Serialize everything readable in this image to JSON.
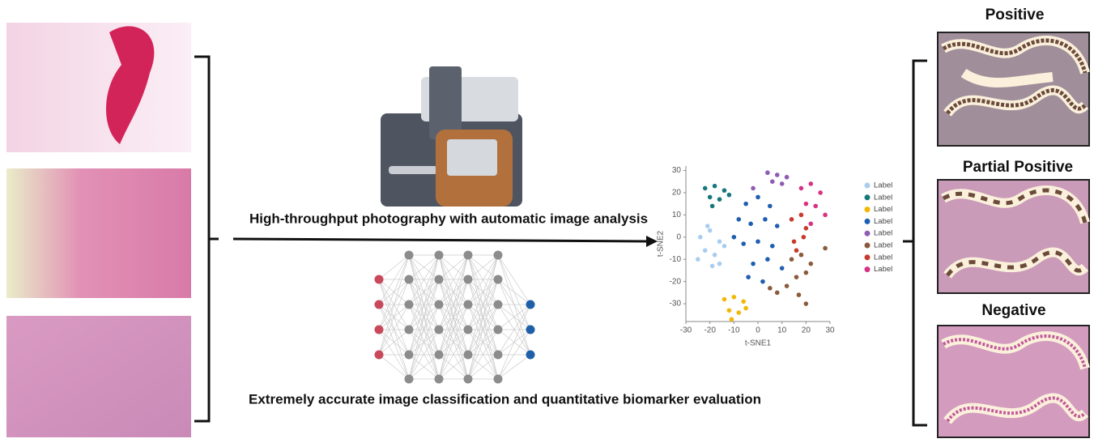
{
  "panels": {
    "positive": "Positive",
    "partial": "Partial Positive",
    "negative": "Negative"
  },
  "captions": {
    "top": "High-throughput  photography with automatic image analysis",
    "bottom": "Extremely  accurate image classification and quantitative biomarker evaluation"
  },
  "chart_data": {
    "type": "scatter",
    "xlabel": "t-SNE1",
    "ylabel": "t-SNE2",
    "xlim": [
      -30,
      30
    ],
    "ylim": [
      -38,
      32
    ],
    "xticks": [
      -30,
      -20,
      -10,
      0,
      10,
      20,
      30
    ],
    "yticks": [
      -30,
      -20,
      -10,
      0,
      10,
      20,
      30
    ],
    "series": [
      {
        "name": "Label",
        "color": "#a9cdee",
        "x": [
          -24,
          -20,
          -16,
          -22,
          -18,
          -14,
          -25,
          -19,
          -21,
          -16
        ],
        "y": [
          0,
          3,
          -2,
          -6,
          -8,
          -4,
          -10,
          -13,
          5,
          -12
        ]
      },
      {
        "name": "Label",
        "color": "#17777a",
        "x": [
          -22,
          -18,
          -14,
          -20,
          -16,
          -12,
          -19
        ],
        "y": [
          22,
          23,
          21,
          18,
          17,
          19,
          14
        ]
      },
      {
        "name": "Label",
        "color": "#f2b705",
        "x": [
          -14,
          -10,
          -6,
          -12,
          -8,
          -11,
          -5
        ],
        "y": [
          -28,
          -27,
          -29,
          -33,
          -34,
          -37,
          -32
        ]
      },
      {
        "name": "Label",
        "color": "#1f5fb0",
        "x": [
          -5,
          0,
          5,
          -8,
          -3,
          3,
          8,
          -6,
          0,
          6,
          -10,
          -2,
          4,
          -4,
          2,
          10
        ],
        "y": [
          15,
          18,
          14,
          8,
          6,
          8,
          5,
          -3,
          -2,
          -4,
          0,
          -12,
          -10,
          -18,
          -20,
          -14
        ]
      },
      {
        "name": "Label",
        "color": "#8e5db3",
        "x": [
          4,
          8,
          12,
          6,
          10,
          -2
        ],
        "y": [
          29,
          28,
          27,
          25,
          24,
          22
        ]
      },
      {
        "name": "Label",
        "color": "#8a5a3c",
        "x": [
          14,
          18,
          22,
          16,
          20,
          12,
          5,
          8,
          20,
          28,
          17
        ],
        "y": [
          -10,
          -8,
          -12,
          -18,
          -16,
          -22,
          -23,
          -25,
          -30,
          -5,
          -26
        ]
      },
      {
        "name": "Label",
        "color": "#c93a2e",
        "x": [
          14,
          18,
          20,
          15,
          19,
          16
        ],
        "y": [
          8,
          10,
          4,
          -2,
          0,
          -6
        ]
      },
      {
        "name": "Label",
        "color": "#d63384",
        "x": [
          18,
          22,
          26,
          20,
          24,
          28,
          22
        ],
        "y": [
          22,
          24,
          20,
          15,
          14,
          10,
          6
        ]
      }
    ]
  }
}
